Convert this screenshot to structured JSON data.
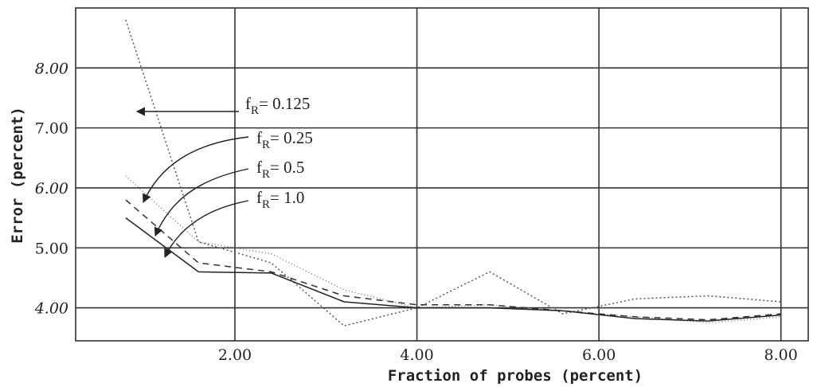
{
  "chart_data": {
    "type": "line",
    "xlabel": "Fraction of probes (percent)",
    "ylabel": "Error (percent)",
    "xlim": [
      0.25,
      8.3
    ],
    "ylim": [
      3.45,
      9.0
    ],
    "x_ticks": [
      {
        "value": 2,
        "label": "2.00"
      },
      {
        "value": 4,
        "label": "4.00"
      },
      {
        "value": 6,
        "label": "6.00"
      },
      {
        "value": 8,
        "label": "8.00"
      }
    ],
    "y_ticks": [
      {
        "value": 4,
        "label": "4.00"
      },
      {
        "value": 5,
        "label": "5.00"
      },
      {
        "value": 6,
        "label": "6.00"
      },
      {
        "value": 7,
        "label": "7.00"
      },
      {
        "value": 8,
        "label": "8.00"
      }
    ],
    "grid": true,
    "series": [
      {
        "name": "f_R = 0.125",
        "label_main": "f",
        "label_sub": "R",
        "label_value": "= 0.125",
        "dash": "2,3",
        "color": "#555555",
        "points": [
          [
            0.8,
            8.8
          ],
          [
            1.6,
            5.1
          ],
          [
            2.4,
            4.75
          ],
          [
            3.2,
            3.7
          ],
          [
            4.0,
            4.0
          ],
          [
            4.8,
            4.6
          ],
          [
            5.6,
            3.9
          ],
          [
            6.4,
            4.15
          ],
          [
            7.2,
            4.2
          ],
          [
            8.0,
            4.1
          ]
        ]
      },
      {
        "name": "f_R = 0.25",
        "label_main": "f",
        "label_sub": "R",
        "label_value": "= 0.25",
        "dash": "1,3",
        "color": "#777777",
        "points": [
          [
            0.8,
            6.2
          ],
          [
            1.6,
            5.1
          ],
          [
            2.4,
            4.9
          ],
          [
            3.2,
            4.3
          ],
          [
            4.0,
            4.0
          ],
          [
            4.8,
            4.05
          ],
          [
            5.6,
            3.95
          ],
          [
            6.4,
            3.85
          ],
          [
            7.2,
            3.75
          ],
          [
            8.0,
            3.85
          ]
        ]
      },
      {
        "name": "f_R = 0.5",
        "label_main": "f",
        "label_sub": "R",
        "label_value": "= 0.5",
        "dash": "8,6",
        "color": "#333333",
        "points": [
          [
            0.8,
            5.8
          ],
          [
            1.6,
            4.75
          ],
          [
            2.4,
            4.6
          ],
          [
            3.2,
            4.2
          ],
          [
            4.0,
            4.05
          ],
          [
            4.8,
            4.05
          ],
          [
            5.6,
            3.95
          ],
          [
            6.4,
            3.85
          ],
          [
            7.2,
            3.8
          ],
          [
            8.0,
            3.9
          ]
        ]
      },
      {
        "name": "f_R = 1.0",
        "label_main": "f",
        "label_sub": "R",
        "label_value": "= 1.0",
        "dash": "",
        "color": "#222222",
        "points": [
          [
            0.8,
            5.5
          ],
          [
            1.6,
            4.6
          ],
          [
            2.4,
            4.58
          ],
          [
            3.2,
            4.1
          ],
          [
            4.0,
            4.0
          ],
          [
            4.8,
            4.0
          ],
          [
            5.6,
            3.95
          ],
          [
            6.4,
            3.82
          ],
          [
            7.2,
            3.78
          ],
          [
            8.0,
            3.88
          ]
        ]
      }
    ]
  }
}
